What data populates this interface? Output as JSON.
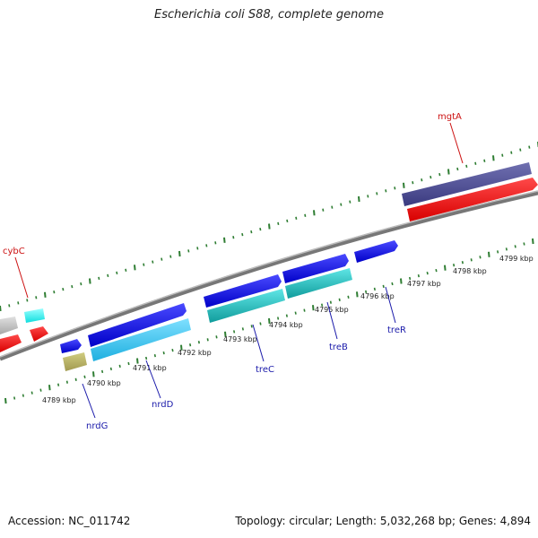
{
  "title": "Escherichia coli S88, complete genome",
  "footer": {
    "accession": "Accession: NC_011742",
    "stats": "Topology: circular; Length: 5,032,268 bp; Genes: 4,894"
  },
  "colors": {
    "backbone": "#8c8c8c",
    "tick": "#2e7d32",
    "label_blue": "#1a1aaa",
    "label_red": "#cc1111"
  },
  "tick_labels": [
    "4789 kbp",
    "4790 kbp",
    "4791 kbp",
    "4792 kbp",
    "4793 kbp",
    "4794 kbp",
    "4795 kbp",
    "4796 kbp",
    "4797 kbp",
    "4798 kbp",
    "4799 kbp"
  ],
  "genes": [
    {
      "name": "cybC",
      "color": "red"
    },
    {
      "name": "nrdG",
      "color": "blue"
    },
    {
      "name": "nrdD",
      "color": "blue"
    },
    {
      "name": "treC",
      "color": "blue"
    },
    {
      "name": "treB",
      "color": "blue"
    },
    {
      "name": "treR",
      "color": "blue"
    },
    {
      "name": "mgtA",
      "color": "red"
    }
  ]
}
